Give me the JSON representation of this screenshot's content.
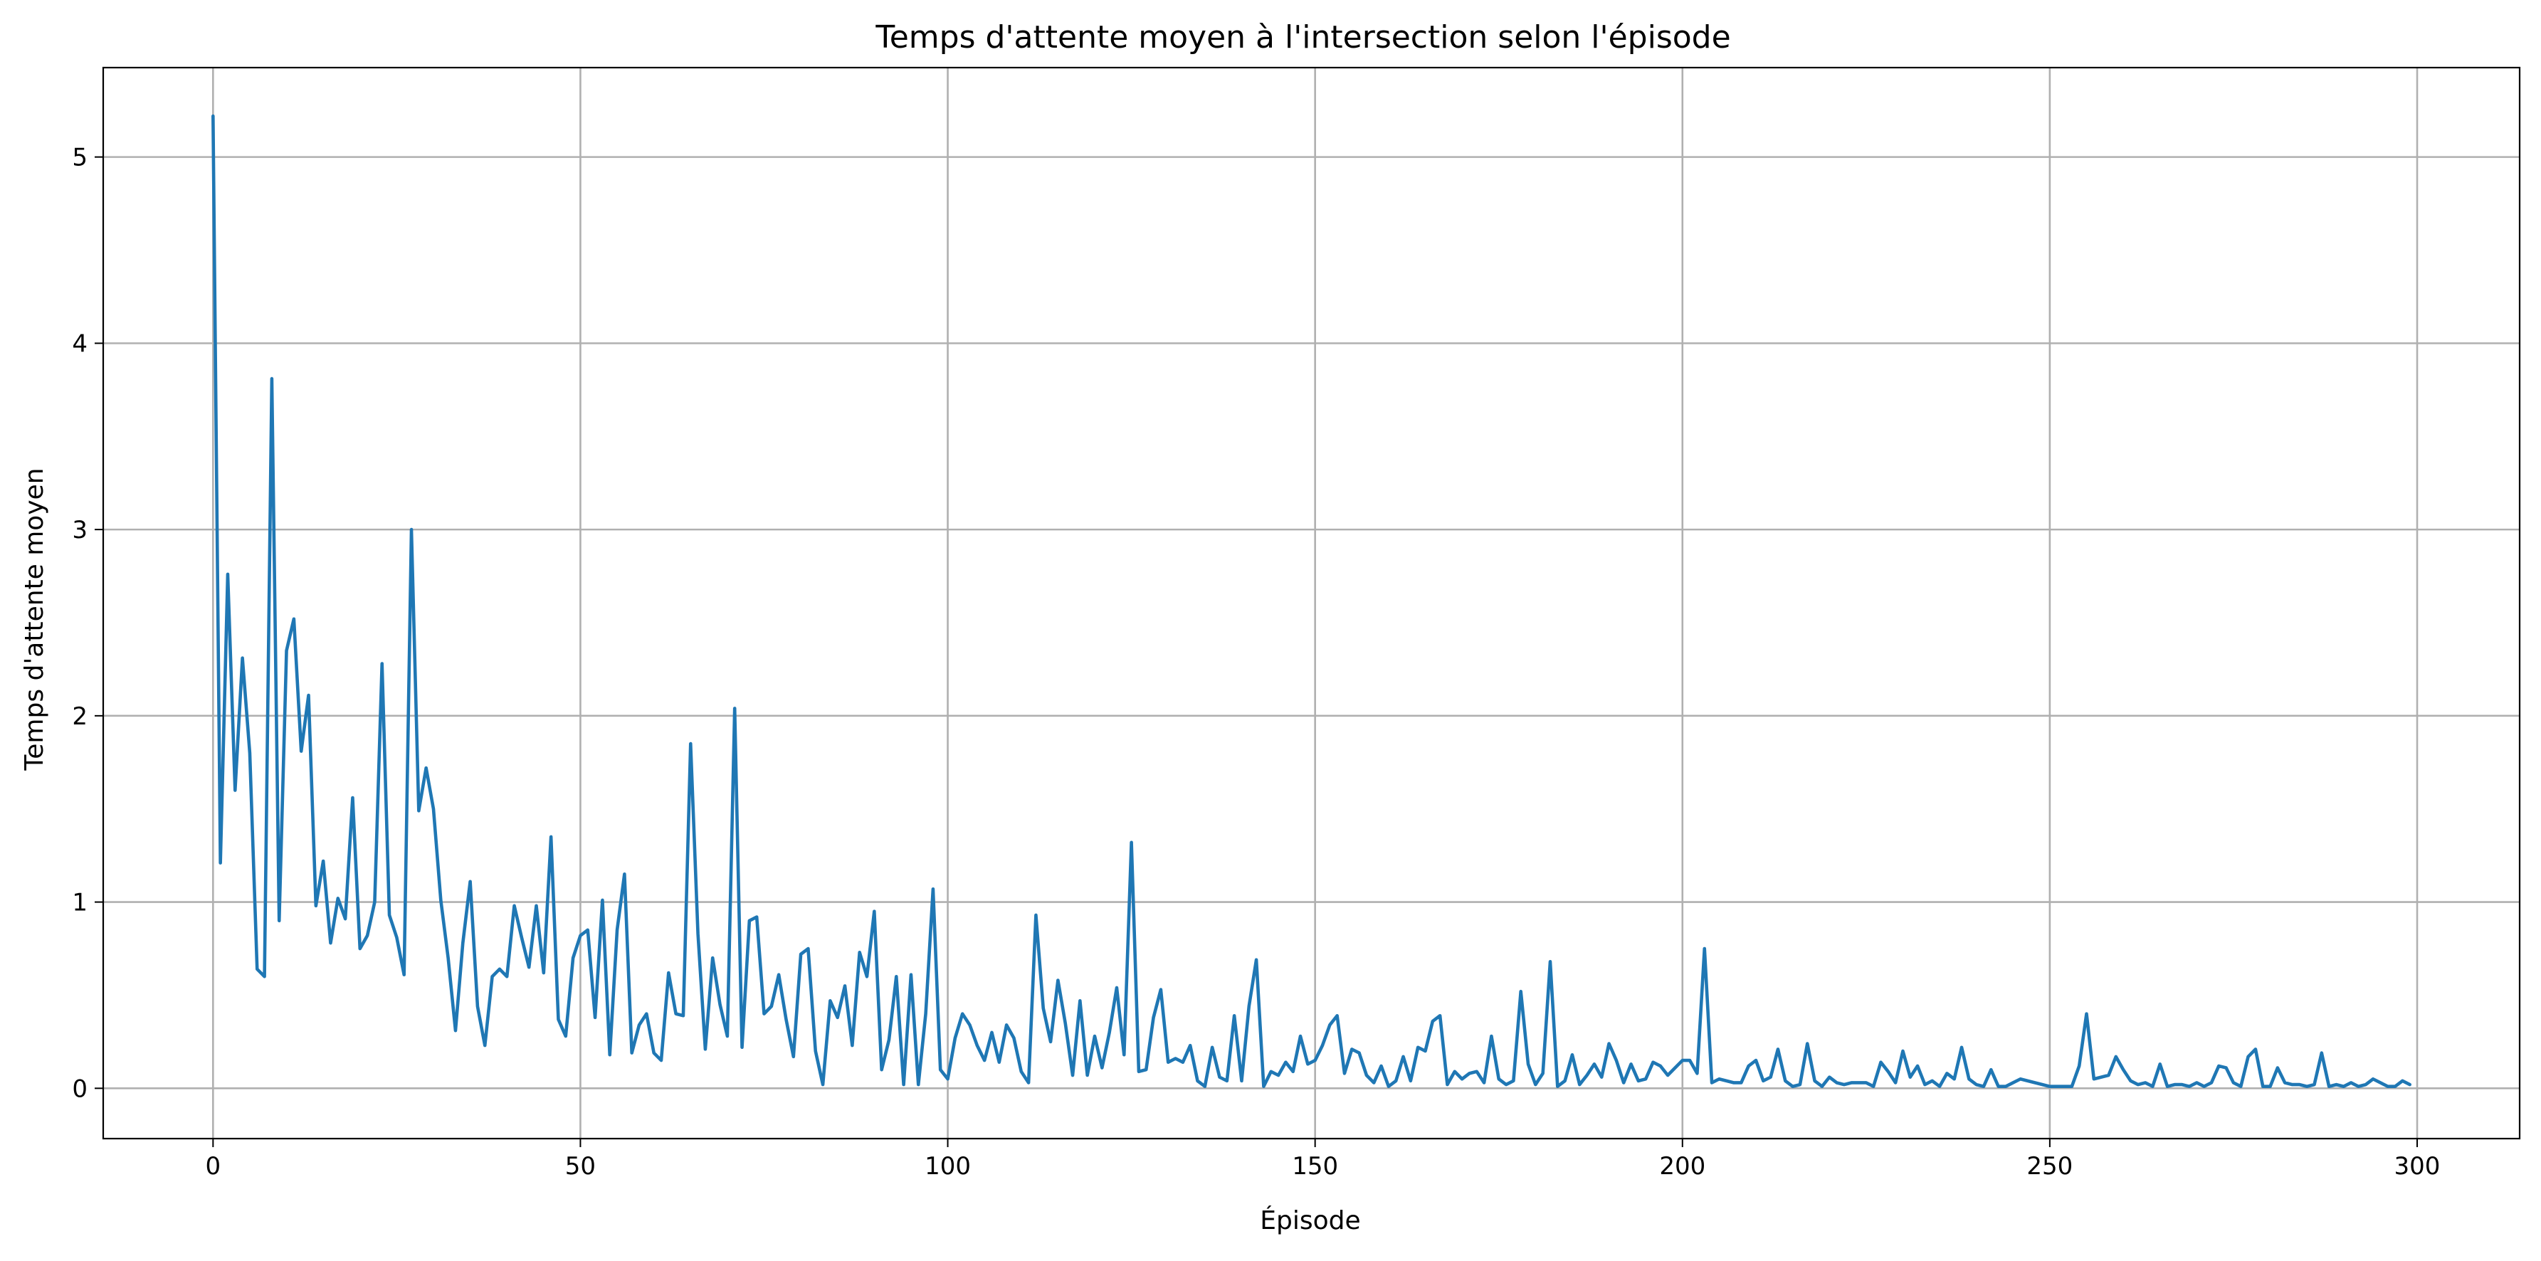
{
  "colors": {
    "series": "#1f77b4",
    "grid": "#b0b0b0",
    "background": "#ffffff"
  },
  "chart_data": {
    "type": "line",
    "title": "Temps d'attente moyen à l'intersection selon l'épisode",
    "xlabel": "Épisode",
    "ylabel": "Temps d'attente moyen",
    "xlim": [
      -14.95,
      313.95
    ],
    "ylim": [
      -0.27,
      5.48
    ],
    "x_ticks": [
      0,
      50,
      100,
      150,
      200,
      250,
      300
    ],
    "y_ticks": [
      0,
      1,
      2,
      3,
      4,
      5
    ],
    "x_tick_labels": [
      "0",
      "50",
      "100",
      "150",
      "200",
      "250",
      "300"
    ],
    "y_tick_labels": [
      "0",
      "1",
      "2",
      "3",
      "4",
      "5"
    ],
    "grid": true,
    "legend": "none",
    "x_start": 0,
    "x_step": 1,
    "series": [
      {
        "values": [
          5.22,
          1.21,
          2.76,
          1.6,
          2.31,
          1.8,
          0.64,
          0.6,
          3.81,
          0.9,
          2.35,
          2.52,
          1.81,
          2.11,
          0.98,
          1.22,
          0.78,
          1.02,
          0.91,
          1.56,
          0.75,
          0.82,
          1.0,
          2.28,
          0.93,
          0.81,
          0.61,
          3.0,
          1.49,
          1.72,
          1.5,
          1.01,
          0.7,
          0.31,
          0.78,
          1.11,
          0.44,
          0.23,
          0.6,
          0.64,
          0.6,
          0.98,
          0.81,
          0.65,
          0.98,
          0.62,
          1.35,
          0.37,
          0.28,
          0.7,
          0.82,
          0.85,
          0.38,
          1.01,
          0.18,
          0.85,
          1.15,
          0.19,
          0.34,
          0.4,
          0.19,
          0.15,
          0.62,
          0.4,
          0.39,
          1.85,
          0.83,
          0.21,
          0.7,
          0.45,
          0.28,
          2.04,
          0.22,
          0.9,
          0.92,
          0.4,
          0.44,
          0.61,
          0.37,
          0.17,
          0.72,
          0.75,
          0.2,
          0.02,
          0.47,
          0.38,
          0.55,
          0.23,
          0.73,
          0.6,
          0.95,
          0.1,
          0.26,
          0.6,
          0.02,
          0.61,
          0.02,
          0.4,
          1.07,
          0.1,
          0.05,
          0.27,
          0.4,
          0.34,
          0.23,
          0.15,
          0.3,
          0.14,
          0.34,
          0.27,
          0.09,
          0.03,
          0.93,
          0.43,
          0.25,
          0.58,
          0.35,
          0.07,
          0.47,
          0.07,
          0.28,
          0.11,
          0.3,
          0.54,
          0.18,
          1.32,
          0.09,
          0.1,
          0.38,
          0.53,
          0.14,
          0.16,
          0.14,
          0.23,
          0.04,
          0.01,
          0.22,
          0.06,
          0.04,
          0.39,
          0.04,
          0.44,
          0.69,
          0.01,
          0.09,
          0.07,
          0.14,
          0.09,
          0.28,
          0.13,
          0.15,
          0.23,
          0.34,
          0.39,
          0.08,
          0.21,
          0.19,
          0.07,
          0.03,
          0.12,
          0.01,
          0.04,
          0.17,
          0.04,
          0.22,
          0.2,
          0.36,
          0.39,
          0.02,
          0.09,
          0.05,
          0.08,
          0.09,
          0.03,
          0.28,
          0.05,
          0.02,
          0.04,
          0.52,
          0.13,
          0.02,
          0.08,
          0.68,
          0.01,
          0.04,
          0.18,
          0.02,
          0.07,
          0.13,
          0.06,
          0.24,
          0.15,
          0.03,
          0.13,
          0.04,
          0.05,
          0.14,
          0.12,
          0.07,
          0.11,
          0.15,
          0.15,
          0.08,
          0.75,
          0.03,
          0.05,
          0.04,
          0.03,
          0.03,
          0.12,
          0.15,
          0.04,
          0.06,
          0.21,
          0.04,
          0.01,
          0.02,
          0.24,
          0.04,
          0.01,
          0.06,
          0.03,
          0.02,
          0.03,
          0.03,
          0.03,
          0.01,
          0.14,
          0.09,
          0.03,
          0.2,
          0.06,
          0.12,
          0.02,
          0.04,
          0.01,
          0.08,
          0.05,
          0.22,
          0.05,
          0.02,
          0.01,
          0.1,
          0.01,
          0.01,
          0.03,
          0.05,
          0.04,
          0.03,
          0.02,
          0.01,
          0.01,
          0.01,
          0.01,
          0.12,
          0.4,
          0.05,
          0.06,
          0.07,
          0.17,
          0.1,
          0.04,
          0.02,
          0.03,
          0.01,
          0.13,
          0.01,
          0.02,
          0.02,
          0.01,
          0.03,
          0.01,
          0.03,
          0.12,
          0.11,
          0.03,
          0.01,
          0.17,
          0.21,
          0.01,
          0.01,
          0.11,
          0.03,
          0.02,
          0.02,
          0.01,
          0.02,
          0.19,
          0.01,
          0.02,
          0.01,
          0.03,
          0.01,
          0.02,
          0.05,
          0.03,
          0.01,
          0.01,
          0.04,
          0.02
        ]
      }
    ]
  }
}
